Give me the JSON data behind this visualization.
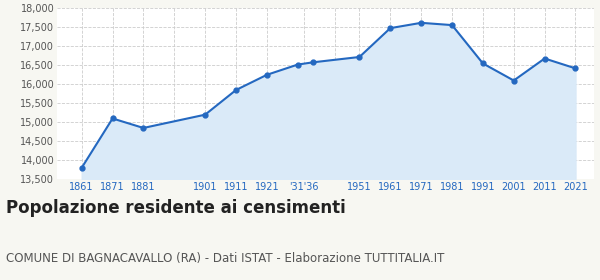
{
  "years": [
    1861,
    1871,
    1881,
    1901,
    1911,
    1921,
    1931,
    1936,
    1951,
    1961,
    1971,
    1981,
    1991,
    2001,
    2011,
    2021
  ],
  "population": [
    13800,
    15100,
    14850,
    15200,
    15850,
    16250,
    16520,
    16580,
    16720,
    17480,
    17620,
    17560,
    16550,
    16100,
    16680,
    16420
  ],
  "x_tick_labels": [
    "1861",
    "1871",
    "1881",
    "",
    "1901",
    "1911",
    "1921",
    "'31'36",
    "",
    "1951",
    "1961",
    "1971",
    "1981",
    "1991",
    "2001",
    "2011",
    "2021"
  ],
  "x_tick_positions": [
    1861,
    1871,
    1881,
    1891,
    1901,
    1911,
    1921,
    1933,
    1943,
    1951,
    1961,
    1971,
    1981,
    1991,
    2001,
    2011,
    2021
  ],
  "ylim": [
    13500,
    18000
  ],
  "yticks": [
    13500,
    14000,
    14500,
    15000,
    15500,
    16000,
    16500,
    17000,
    17500,
    18000
  ],
  "line_color": "#2468c0",
  "fill_color": "#daeaf8",
  "marker_color": "#2468c0",
  "grid_color": "#cccccc",
  "plot_bg_color": "#ffffff",
  "fig_bg_color": "#f7f7f2",
  "title": "Popolazione residente ai censimenti",
  "subtitle": "COMUNE DI BAGNACAVALLO (RA) - Dati ISTAT - Elaborazione TUTTITALIA.IT",
  "title_fontsize": 12,
  "subtitle_fontsize": 8.5,
  "x_tick_color": "#2468c0"
}
